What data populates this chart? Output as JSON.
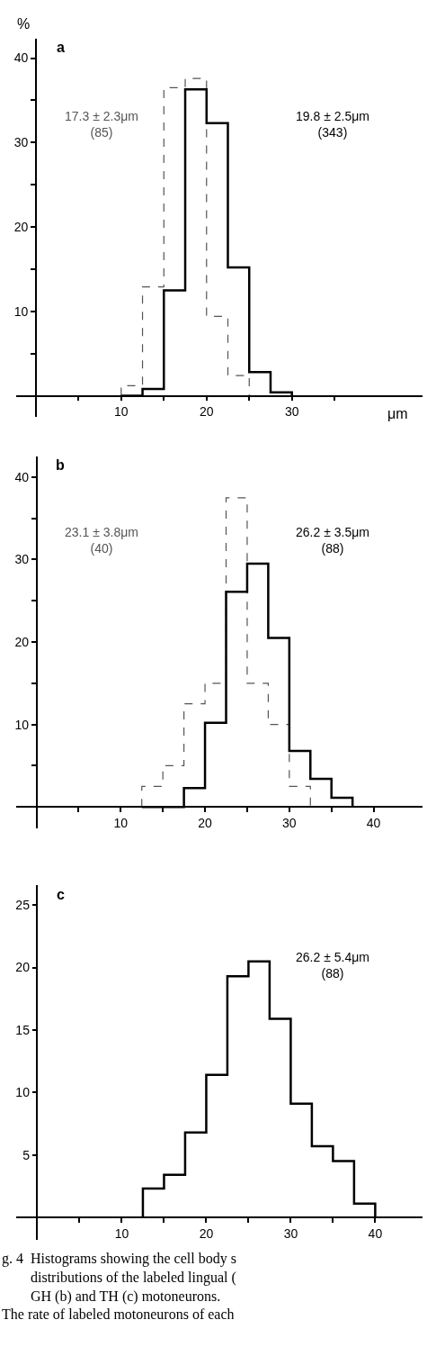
{
  "chart_data": [
    {
      "type": "histogram",
      "title": "a",
      "xlabel": "μm",
      "ylabel": "%",
      "xlim": [
        -2.3,
        45.3
      ],
      "ylim": [
        -2.5,
        42.3
      ],
      "xticks": [
        {
          "value": 5,
          "label": null
        },
        10,
        {
          "value": 15,
          "label": null
        },
        20,
        {
          "value": 25,
          "label": null
        },
        30,
        {
          "value": 35,
          "label": null
        }
      ],
      "yticks": [
        {
          "value": 5,
          "label": null
        },
        10,
        {
          "value": 15,
          "label": null
        },
        20,
        {
          "value": 25,
          "label": null
        },
        30,
        {
          "value": 35,
          "label": null
        },
        40
      ],
      "bins": [
        10,
        12.5,
        15,
        17.5,
        20,
        22.5,
        25,
        27.5,
        30
      ],
      "series": [
        {
          "name": "17.3 ± 2.3μm\n(85)",
          "color": "#555555",
          "line_style": "dashed",
          "values": [
            1.2,
            12.9,
            36.5,
            37.6,
            9.4,
            2.4,
            0,
            0
          ]
        },
        {
          "name": "19.8 ± 2.5μm\n(343)",
          "color": "#000000",
          "line_style": "solid",
          "values": [
            0,
            0.8,
            12.5,
            36.3,
            32.3,
            15.2,
            2.8,
            0.4
          ]
        }
      ]
    },
    {
      "type": "histogram",
      "title": "b",
      "xlim": [
        -2.4,
        45.8
      ],
      "ylim": [
        -2.6,
        42.5
      ],
      "xticks": [
        {
          "value": 5,
          "label": null
        },
        10,
        {
          "value": 15,
          "label": null
        },
        20,
        {
          "value": 25,
          "label": null
        },
        30,
        {
          "value": 35,
          "label": null
        },
        40
      ],
      "yticks": [
        {
          "value": 5,
          "label": null
        },
        10,
        {
          "value": 15,
          "label": null
        },
        20,
        {
          "value": 25,
          "label": null
        },
        30,
        {
          "value": 35,
          "label": null
        },
        40
      ],
      "bins": [
        12.5,
        15,
        17.5,
        20,
        22.5,
        25,
        27.5,
        30,
        32.5,
        35,
        37.5
      ],
      "series": [
        {
          "name": "23.1 ± 3.8μm\n(40)",
          "color": "#555555",
          "line_style": "dashed",
          "values": [
            2.5,
            5,
            12.5,
            15,
            37.5,
            15,
            10,
            2.5,
            0,
            0
          ]
        },
        {
          "name": "26.2 ± 3.5μm\n(88)",
          "color": "#000000",
          "line_style": "solid",
          "values": [
            0,
            0,
            2.3,
            10.2,
            26.1,
            29.5,
            20.5,
            6.8,
            3.4,
            1.1
          ]
        }
      ]
    },
    {
      "type": "histogram",
      "title": "c",
      "xlim": [
        -2.5,
        45.6
      ],
      "ylim": [
        -1.8,
        26.6
      ],
      "xticks": [
        {
          "value": 5,
          "label": null
        },
        10,
        {
          "value": 15,
          "label": null
        },
        20,
        {
          "value": 25,
          "label": null
        },
        30,
        {
          "value": 35,
          "label": null
        },
        40
      ],
      "yticks": [
        5,
        10,
        15,
        20,
        25
      ],
      "bins": [
        12.5,
        15,
        17.5,
        20,
        22.5,
        25,
        27.5,
        30,
        32.5,
        35,
        37.5,
        40
      ],
      "series": [
        {
          "name": "26.2 ± 5.4μm\n(88)",
          "color": "#000000",
          "line_style": "solid",
          "values": [
            2.3,
            3.4,
            6.8,
            11.4,
            19.3,
            20.5,
            15.9,
            9.1,
            5.7,
            4.5,
            1.1
          ]
        }
      ],
      "annotations": [
        "g. 4  Histograms showing the cell body s\n        distributions of the labeled lingual (\n        GH (b) and TH (c) motoneurons.\nThe rate of labeled motoneurons of each"
      ]
    }
  ]
}
